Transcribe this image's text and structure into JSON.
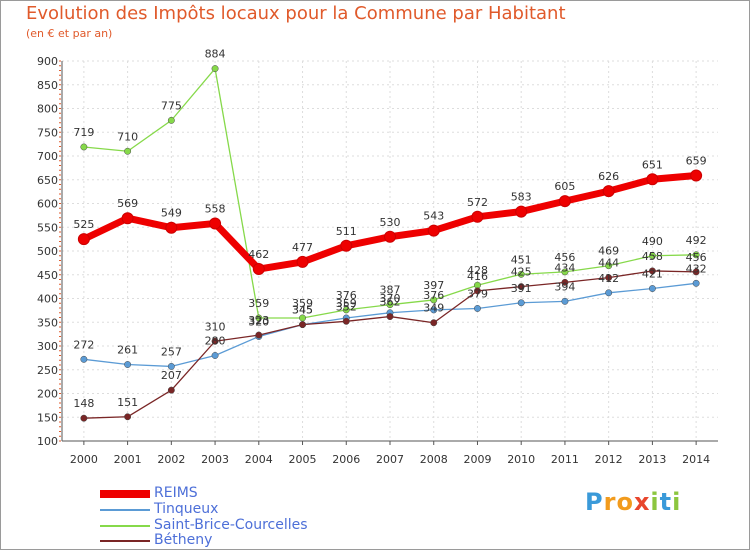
{
  "title": "Evolution des Impôts locaux pour la Commune par Habitant",
  "subtitle": "(en € et par an)",
  "logo": {
    "text": "Proxiti",
    "letters": [
      "P",
      "r",
      "o",
      "x",
      "i",
      "t",
      "i"
    ],
    "colors": [
      "#3a9ad9",
      "#f29b1d",
      "#f29b1d",
      "#e8462d",
      "#8cc63f",
      "#3a9ad9",
      "#8cc63f"
    ]
  },
  "chart_data": {
    "type": "line",
    "x": [
      "2000",
      "2001",
      "2002",
      "2003",
      "2004",
      "2005",
      "2006",
      "2007",
      "2008",
      "2009",
      "2010",
      "2011",
      "2012",
      "2013",
      "2014"
    ],
    "y_ticks": [
      100,
      150,
      200,
      250,
      300,
      350,
      400,
      450,
      500,
      550,
      600,
      650,
      700,
      750,
      800,
      850,
      900
    ],
    "ylim": [
      100,
      900
    ],
    "grid": true,
    "legend_position": "bottom-left",
    "series": [
      {
        "name": "REIMS",
        "color": "#ee0000",
        "values": [
          525,
          569,
          549,
          558,
          462,
          477,
          511,
          530,
          543,
          572,
          583,
          605,
          626,
          651,
          659
        ],
        "labels": [
          "525",
          "569",
          "549",
          "558",
          "462",
          "477",
          "511",
          "530",
          "543",
          "572",
          "583",
          "605",
          "626",
          "651",
          "659"
        ]
      },
      {
        "name": "Tinqueux",
        "color": "#5b9bd5",
        "values": [
          272,
          261,
          257,
          280,
          320,
          345,
          359,
          370,
          376,
          379,
          391,
          394,
          412,
          421,
          432
        ],
        "labels": [
          "272",
          "261",
          "257",
          "280",
          "320",
          "345",
          "359",
          "370",
          "376",
          "379",
          "391",
          "394",
          "412",
          "421",
          "432"
        ]
      },
      {
        "name": "Saint-Brice-Courcelles",
        "color": "#86d94a",
        "values": [
          719,
          710,
          775,
          884,
          359,
          359,
          376,
          387,
          397,
          428,
          451,
          456,
          469,
          490,
          492
        ],
        "labels": [
          "719",
          "710",
          "775",
          "884",
          "359",
          "359",
          "376",
          "387",
          "397",
          "428",
          "451",
          "456",
          "469",
          "490",
          "492"
        ]
      },
      {
        "name": "Bétheny",
        "color": "#7a2626",
        "values": [
          148,
          151,
          207,
          310,
          323,
          345,
          352,
          362,
          349,
          416,
          425,
          434,
          444,
          458,
          456
        ],
        "labels": [
          "148",
          "151",
          "207",
          "310",
          "323",
          "345",
          "352",
          "362",
          "349",
          "416",
          "425",
          "434",
          "444",
          "458",
          "456"
        ]
      }
    ]
  }
}
